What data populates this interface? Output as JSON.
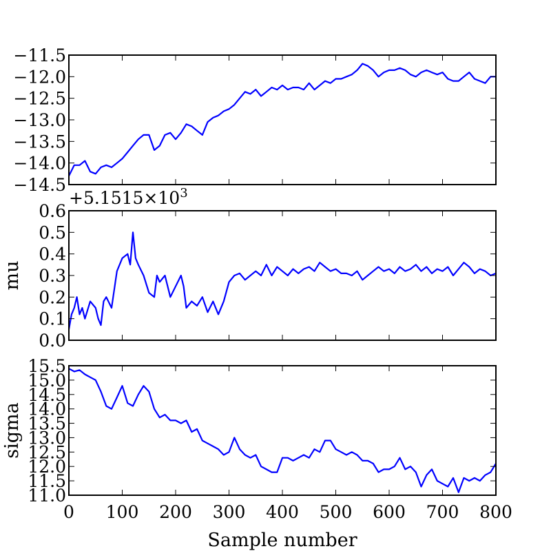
{
  "chart_data": [
    {
      "type": "line",
      "title": "",
      "xlabel": "",
      "ylabel": "",
      "offset_text": "",
      "xlim": [
        0,
        800
      ],
      "ylim": [
        -14.5,
        -11.5
      ],
      "yticks": [
        "−11.5",
        "−12.0",
        "−12.5",
        "−13.0",
        "−13.5",
        "−14.0",
        "−14.5"
      ],
      "ytick_values": [
        -11.5,
        -12.0,
        -12.5,
        -13.0,
        -13.5,
        -14.0,
        -14.5
      ],
      "xtick_values": [
        0,
        100,
        200,
        300,
        400,
        500,
        600,
        700,
        800
      ],
      "show_xtick_labels": false,
      "color": "#0000ff",
      "series": [
        {
          "x": [
            0,
            10,
            20,
            30,
            40,
            50,
            60,
            70,
            80,
            90,
            100,
            110,
            120,
            130,
            140,
            150,
            160,
            170,
            180,
            190,
            200,
            210,
            220,
            230,
            240,
            250,
            260,
            270,
            280,
            290,
            300,
            310,
            320,
            330,
            340,
            350,
            360,
            370,
            380,
            390,
            400,
            410,
            420,
            430,
            440,
            450,
            460,
            470,
            480,
            490,
            500,
            510,
            520,
            530,
            540,
            550,
            560,
            570,
            580,
            590,
            600,
            610,
            620,
            630,
            640,
            650,
            660,
            670,
            680,
            690,
            700,
            710,
            720,
            730,
            740,
            750,
            760,
            770,
            780,
            790,
            800
          ],
          "y": [
            -14.3,
            -14.05,
            -14.05,
            -13.95,
            -14.2,
            -14.25,
            -14.1,
            -14.05,
            -14.1,
            -14.0,
            -13.9,
            -13.75,
            -13.6,
            -13.45,
            -13.35,
            -13.35,
            -13.7,
            -13.6,
            -13.35,
            -13.3,
            -13.45,
            -13.3,
            -13.1,
            -13.15,
            -13.25,
            -13.35,
            -13.05,
            -12.95,
            -12.9,
            -12.8,
            -12.75,
            -12.65,
            -12.5,
            -12.35,
            -12.4,
            -12.3,
            -12.45,
            -12.35,
            -12.25,
            -12.3,
            -12.2,
            -12.3,
            -12.25,
            -12.25,
            -12.3,
            -12.15,
            -12.3,
            -12.2,
            -12.1,
            -12.15,
            -12.05,
            -12.05,
            -12.0,
            -11.95,
            -11.85,
            -11.7,
            -11.75,
            -11.85,
            -12.0,
            -11.9,
            -11.85,
            -11.85,
            -11.8,
            -11.85,
            -11.95,
            -12.0,
            -11.9,
            -11.85,
            -11.9,
            -11.95,
            -11.9,
            -12.05,
            -12.1,
            -12.1,
            -12.0,
            -11.9,
            -12.05,
            -12.1,
            -12.15,
            -12.0,
            -12.0
          ]
        }
      ]
    },
    {
      "type": "line",
      "title": "",
      "xlabel": "",
      "ylabel": "mu",
      "offset_text": "+5.1515×10",
      "offset_exp": "3",
      "xlim": [
        0,
        800
      ],
      "ylim": [
        0.0,
        0.6
      ],
      "yticks": [
        "0.6",
        "0.5",
        "0.4",
        "0.3",
        "0.2",
        "0.1",
        "0.0"
      ],
      "ytick_values": [
        0.6,
        0.5,
        0.4,
        0.3,
        0.2,
        0.1,
        0.0
      ],
      "xtick_values": [
        0,
        100,
        200,
        300,
        400,
        500,
        600,
        700,
        800
      ],
      "show_xtick_labels": false,
      "color": "#0000ff",
      "series": [
        {
          "x": [
            0,
            5,
            10,
            15,
            20,
            25,
            30,
            40,
            50,
            55,
            60,
            65,
            70,
            80,
            90,
            100,
            110,
            115,
            120,
            125,
            130,
            140,
            150,
            160,
            165,
            170,
            180,
            190,
            200,
            210,
            215,
            220,
            230,
            240,
            250,
            260,
            270,
            280,
            290,
            300,
            310,
            320,
            330,
            340,
            350,
            360,
            370,
            380,
            390,
            400,
            410,
            420,
            430,
            440,
            450,
            460,
            470,
            480,
            490,
            500,
            510,
            520,
            530,
            540,
            550,
            560,
            570,
            580,
            590,
            600,
            610,
            620,
            630,
            640,
            650,
            660,
            670,
            680,
            690,
            700,
            710,
            720,
            730,
            740,
            750,
            760,
            770,
            780,
            790,
            800
          ],
          "y": [
            0.05,
            0.12,
            0.15,
            0.2,
            0.12,
            0.15,
            0.1,
            0.18,
            0.15,
            0.1,
            0.07,
            0.18,
            0.2,
            0.15,
            0.32,
            0.38,
            0.4,
            0.35,
            0.5,
            0.38,
            0.35,
            0.3,
            0.22,
            0.2,
            0.3,
            0.27,
            0.3,
            0.2,
            0.25,
            0.3,
            0.25,
            0.15,
            0.18,
            0.16,
            0.2,
            0.13,
            0.18,
            0.12,
            0.18,
            0.27,
            0.3,
            0.31,
            0.28,
            0.3,
            0.32,
            0.3,
            0.35,
            0.3,
            0.34,
            0.32,
            0.3,
            0.33,
            0.31,
            0.33,
            0.34,
            0.32,
            0.36,
            0.34,
            0.32,
            0.33,
            0.31,
            0.31,
            0.3,
            0.32,
            0.28,
            0.3,
            0.32,
            0.34,
            0.32,
            0.33,
            0.31,
            0.34,
            0.32,
            0.33,
            0.35,
            0.32,
            0.34,
            0.31,
            0.33,
            0.32,
            0.34,
            0.3,
            0.33,
            0.36,
            0.34,
            0.31,
            0.33,
            0.32,
            0.3,
            0.31
          ]
        }
      ]
    },
    {
      "type": "line",
      "title": "",
      "xlabel": "Sample number",
      "ylabel": "sigma",
      "offset_text": "",
      "xlim": [
        0,
        800
      ],
      "ylim": [
        11.0,
        15.5
      ],
      "yticks": [
        "15.5",
        "15.0",
        "14.5",
        "14.0",
        "13.5",
        "13.0",
        "12.5",
        "12.0",
        "11.5",
        "11.0"
      ],
      "ytick_values": [
        15.5,
        15.0,
        14.5,
        14.0,
        13.5,
        13.0,
        12.5,
        12.0,
        11.5,
        11.0
      ],
      "xtick_values": [
        0,
        100,
        200,
        300,
        400,
        500,
        600,
        700,
        800
      ],
      "xticks": [
        "0",
        "100",
        "200",
        "300",
        "400",
        "500",
        "600",
        "700",
        "800"
      ],
      "show_xtick_labels": true,
      "color": "#0000ff",
      "series": [
        {
          "x": [
            0,
            10,
            20,
            30,
            40,
            50,
            60,
            70,
            80,
            90,
            100,
            110,
            120,
            130,
            140,
            150,
            160,
            170,
            180,
            190,
            200,
            210,
            220,
            230,
            240,
            250,
            260,
            270,
            280,
            290,
            300,
            310,
            320,
            330,
            340,
            350,
            360,
            370,
            380,
            390,
            400,
            410,
            420,
            430,
            440,
            450,
            460,
            470,
            480,
            490,
            500,
            510,
            520,
            530,
            540,
            550,
            560,
            570,
            580,
            590,
            600,
            610,
            620,
            630,
            640,
            650,
            660,
            670,
            680,
            690,
            700,
            710,
            720,
            730,
            740,
            750,
            760,
            770,
            780,
            790,
            800
          ],
          "y": [
            15.4,
            15.3,
            15.35,
            15.2,
            15.1,
            15.0,
            14.6,
            14.1,
            14.0,
            14.4,
            14.8,
            14.2,
            14.1,
            14.5,
            14.8,
            14.6,
            14.0,
            13.7,
            13.8,
            13.6,
            13.6,
            13.5,
            13.6,
            13.2,
            13.3,
            12.9,
            12.8,
            12.7,
            12.6,
            12.4,
            12.5,
            13.0,
            12.6,
            12.4,
            12.3,
            12.4,
            12.0,
            11.9,
            11.8,
            11.8,
            12.3,
            12.3,
            12.2,
            12.3,
            12.4,
            12.3,
            12.6,
            12.5,
            12.9,
            12.9,
            12.6,
            12.5,
            12.4,
            12.5,
            12.4,
            12.2,
            12.2,
            12.1,
            11.8,
            11.9,
            11.9,
            12.0,
            12.3,
            11.9,
            12.0,
            11.8,
            11.3,
            11.7,
            11.9,
            11.5,
            11.4,
            11.3,
            11.6,
            11.1,
            11.6,
            11.5,
            11.6,
            11.5,
            11.7,
            11.8,
            12.1
          ]
        }
      ]
    }
  ]
}
